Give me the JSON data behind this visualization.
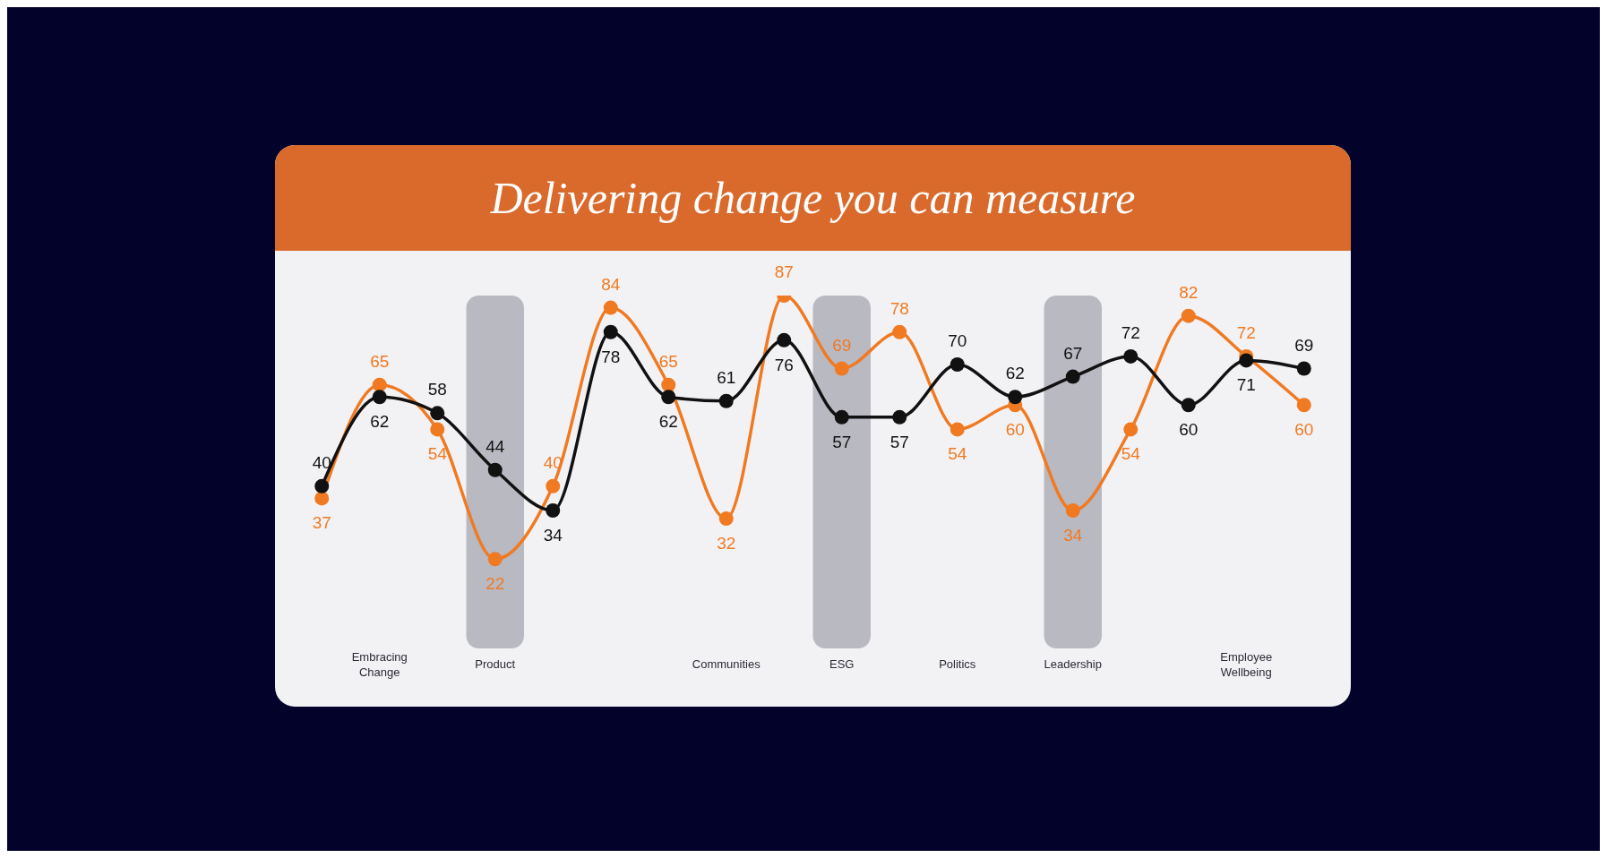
{
  "chart_data": {
    "type": "line",
    "title": "Delivering change you can measure",
    "categories": [
      null,
      "Embracing Change",
      null,
      "Product",
      null,
      null,
      null,
      "Communities",
      null,
      "ESG",
      null,
      "Politics",
      null,
      "Leadership",
      null,
      null,
      "Employee Wellbeing",
      null
    ],
    "series": [
      {
        "color": "#f07a22",
        "values": [
          37,
          65,
          54,
          22,
          40,
          84,
          65,
          32,
          87,
          69,
          78,
          54,
          60,
          34,
          54,
          82,
          72,
          60
        ]
      },
      {
        "color": "#111111",
        "values": [
          40,
          62,
          58,
          44,
          34,
          78,
          62,
          61,
          76,
          57,
          57,
          70,
          62,
          67,
          72,
          60,
          71,
          69
        ]
      }
    ],
    "bands": [
      {
        "axis": "x",
        "from": "Product",
        "to": "Product",
        "color": "#b9b9c2"
      },
      {
        "axis": "x",
        "from": "ESG",
        "to": "ESG",
        "color": "#b9b9c2"
      },
      {
        "axis": "x",
        "from": "Leadership",
        "to": "Leadership",
        "color": "#b9b9c2"
      }
    ],
    "data_labels": true,
    "marker": "circle",
    "line_style": "solid",
    "tick_labels": "x"
  }
}
